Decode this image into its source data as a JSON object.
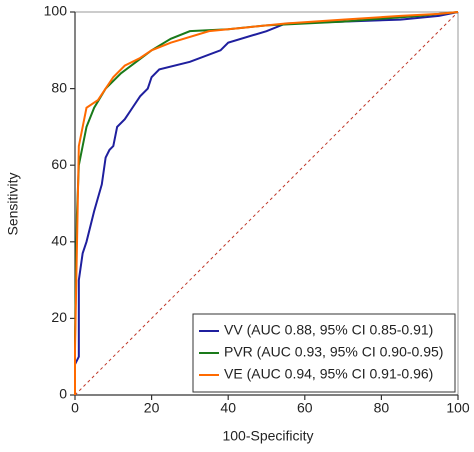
{
  "chart_data": {
    "type": "line",
    "x_label": "100-Specificity",
    "y_label": "Sensitivity",
    "xlim": [
      0,
      100
    ],
    "ylim": [
      0,
      100
    ],
    "xticks": [
      0,
      20,
      40,
      60,
      80,
      100
    ],
    "yticks": [
      0,
      20,
      40,
      60,
      80,
      100
    ],
    "legend": "lower right",
    "diagonal": true,
    "series": [
      {
        "name": "VV (AUC 0.88, 95% CI 0.85-0.91)",
        "color": "#1f1f9e",
        "x": [
          0,
          0,
          1,
          1,
          2,
          3,
          5,
          7,
          8,
          9,
          10,
          11,
          13,
          15,
          17,
          19,
          20,
          22,
          30,
          38,
          40,
          50,
          55,
          70,
          85,
          95,
          100
        ],
        "values": [
          0,
          8,
          10,
          30,
          37,
          40,
          48,
          55,
          62,
          64,
          65,
          70,
          72,
          75,
          78,
          80,
          83,
          85,
          87,
          90,
          92,
          95,
          97,
          97.5,
          98,
          99,
          100
        ]
      },
      {
        "name": "PVR (AUC 0.93, 95% CI 0.90-0.95)",
        "color": "#1a7a1a",
        "x": [
          0,
          0,
          0.5,
          1,
          2,
          3,
          5,
          8,
          12,
          16,
          20,
          25,
          30,
          40,
          50,
          70,
          90,
          100
        ],
        "values": [
          0,
          15,
          47,
          60,
          65,
          70,
          75,
          80,
          84,
          87,
          90,
          93,
          95,
          95.5,
          96.5,
          97.5,
          99,
          100
        ]
      },
      {
        "name": "VE (AUC 0.94, 95% CI 0.91-0.96)",
        "color": "#ff6a00",
        "x": [
          0,
          0,
          1,
          2,
          3,
          6,
          8,
          10,
          13,
          17,
          20,
          25,
          35,
          45,
          55,
          70,
          85,
          95,
          100
        ],
        "values": [
          0,
          12,
          65,
          70,
          75,
          77,
          80,
          83,
          86,
          88,
          90,
          92,
          95,
          96,
          97,
          98,
          99,
          99.5,
          100
        ]
      }
    ]
  }
}
